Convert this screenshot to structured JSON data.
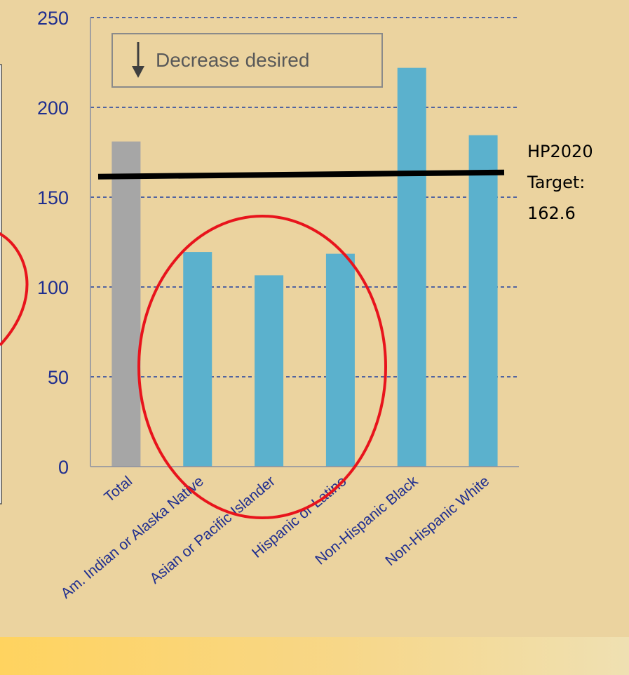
{
  "chart_data": {
    "type": "bar",
    "categories": [
      "Total",
      "Am. Indian or Alaska Native",
      "Asian or Pacific Islander",
      "Hispanic or Latino",
      "Non-Hispanic Black",
      "Non-Hispanic White"
    ],
    "values": [
      181,
      119.5,
      106.5,
      118.5,
      222,
      184.5
    ],
    "bar_colors": [
      "#a6a6a6",
      "#5bb1cd",
      "#5bb1cd",
      "#5bb1cd",
      "#5bb1cd",
      "#5bb1cd"
    ],
    "ylim": [
      0,
      250
    ],
    "yticks": [
      "0",
      "50",
      "100",
      "150",
      "200",
      "250"
    ],
    "ytick_values": [
      0,
      50,
      100,
      150,
      200,
      250
    ],
    "grid": true,
    "target": {
      "value": 162.6,
      "label_lines": [
        "HP2020",
        "Target:",
        "162.6"
      ],
      "color": "#000000"
    },
    "legend": {
      "text": "Decrease desired",
      "icon": "down-arrow-icon",
      "placement": "top-left"
    },
    "highlight_color": "#e8141c",
    "axis_label_color": "#1f2e8f",
    "grid_color": "#1f3fa0"
  }
}
